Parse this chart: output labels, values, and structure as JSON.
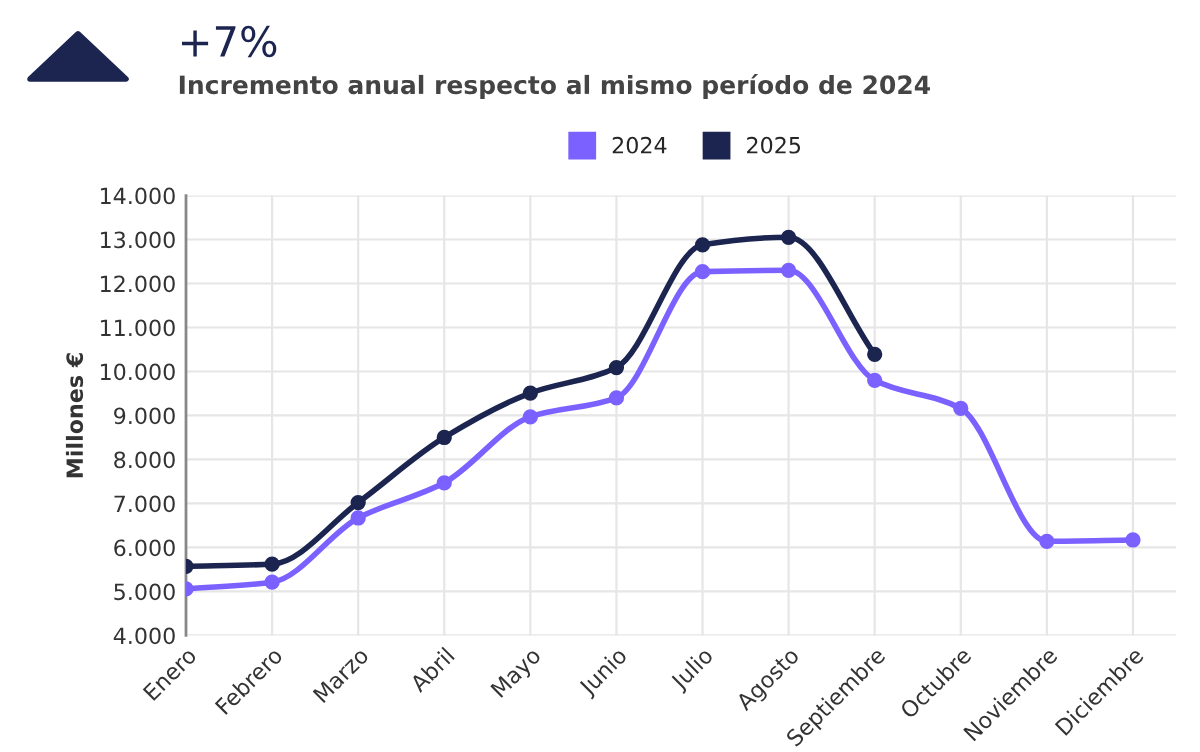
{
  "chart_data": {
    "type": "line",
    "title": "+7%",
    "subtitle": "Incremento anual respecto al mismo período de 2024",
    "ylabel": "Millones €",
    "categories": [
      "Enero",
      "Febrero",
      "Marzo",
      "Abril",
      "Mayo",
      "Junio",
      "Julio",
      "Agosto",
      "Septiembre",
      "Octubre",
      "Noviembre",
      "Diciembre"
    ],
    "series": [
      {
        "name": "2024",
        "color": "#7b61ff",
        "values": [
          5060,
          5210,
          6670,
          7470,
          8970,
          9400,
          12270,
          12300,
          9800,
          9160,
          6140,
          6170
        ]
      },
      {
        "name": "2025",
        "color": "#1b2550",
        "values": [
          5570,
          5620,
          7020,
          8500,
          9510,
          10090,
          12880,
          13050,
          10390,
          null,
          null,
          null
        ]
      }
    ],
    "ylim": [
      4000,
      14000
    ],
    "yticks": [
      {
        "value": 4000,
        "label": "4.000"
      },
      {
        "value": 5000,
        "label": "5.000"
      },
      {
        "value": 6000,
        "label": "6.000"
      },
      {
        "value": 7000,
        "label": "7.000"
      },
      {
        "value": 8000,
        "label": "8.000"
      },
      {
        "value": 9000,
        "label": "9.000"
      },
      {
        "value": 10000,
        "label": "10.000"
      },
      {
        "value": 11000,
        "label": "11.000"
      },
      {
        "value": 12000,
        "label": "12.000"
      },
      {
        "value": 13000,
        "label": "13.000"
      },
      {
        "value": 14000,
        "label": "14.000"
      }
    ],
    "grid": true,
    "legend": "top",
    "marker": "circle",
    "line_style": "solid"
  }
}
